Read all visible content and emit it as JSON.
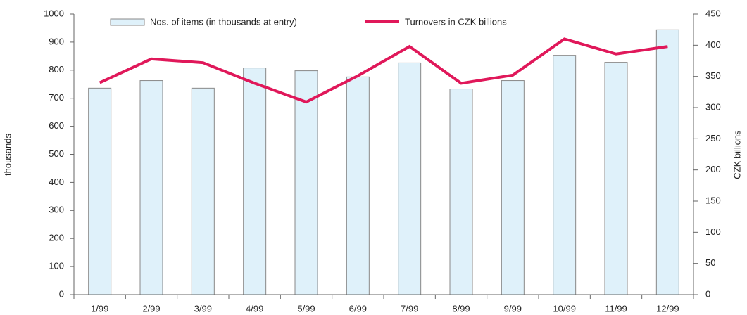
{
  "chart_data": {
    "type": "bar_line",
    "categories": [
      "1/99",
      "2/99",
      "3/99",
      "4/99",
      "5/99",
      "6/99",
      "7/99",
      "8/99",
      "9/99",
      "10/99",
      "11/99",
      "12/99"
    ],
    "series": [
      {
        "name": "Nos. of items (in thousands at entry)",
        "type": "bar",
        "color": "#dff1fa",
        "values": [
          736,
          763,
          736,
          808,
          798,
          776,
          826,
          733,
          763,
          853,
          828,
          944
        ]
      },
      {
        "name": "Turnovers in CZK billions",
        "type": "line",
        "axis": "y2",
        "color": "#e0185a",
        "values": [
          340,
          378,
          372,
          339,
          309,
          351,
          398,
          339,
          352,
          410,
          386,
          398
        ]
      }
    ],
    "ylabel": "thousands",
    "y2label": "CZK billions",
    "ylim": [
      0,
      1000
    ],
    "yticks": [
      0,
      100,
      200,
      300,
      400,
      500,
      600,
      700,
      800,
      900,
      1000
    ],
    "y2lim": [
      0,
      450
    ],
    "y2ticks": [
      0,
      50,
      100,
      150,
      200,
      250,
      300,
      350,
      400,
      450
    ],
    "legend": "top"
  }
}
